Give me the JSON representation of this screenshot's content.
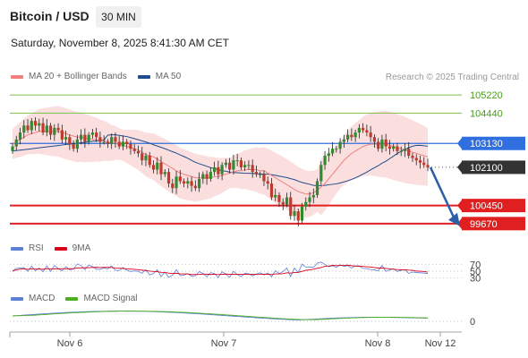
{
  "header": {
    "title": "Bitcoin / USD",
    "timeframe": "30 MIN",
    "timestamp": "Saturday, November 8, 2025 8:41:30 AM CET"
  },
  "legend_price": [
    {
      "label": "MA 20 + Bollinger Bands",
      "color": "#f08080"
    },
    {
      "label": "MA 50",
      "color": "#1f4e8c"
    }
  ],
  "credit": "Research © 2025 Trading Central",
  "legend_rsi": [
    {
      "label": "RSI",
      "color": "#5b7fd6"
    },
    {
      "label": "9MA",
      "color": "#d9001b"
    }
  ],
  "legend_macd": [
    {
      "label": "MACD",
      "color": "#5b7fd6"
    },
    {
      "label": "MACD Signal",
      "color": "#4caf1f"
    }
  ],
  "colors": {
    "up": "#2e8b2e",
    "down": "#c0392b",
    "support": "#e02020",
    "resistance_green": "#7fbf4f",
    "pivot": "#2f6fe0",
    "last": "#333333",
    "band_fill": "#fbdada",
    "ma20": "#f08080",
    "ma50": "#1f4e8c",
    "arrow": "#2a5fa8"
  },
  "chart_data": [
    {
      "type": "candlestick",
      "title": "Bitcoin / USD",
      "timeframe": "30 MIN",
      "x_tick_labels": [
        "Nov 6",
        "Nov 7",
        "Nov 8",
        "Nov 12"
      ],
      "ylim": [
        99200,
        105650
      ],
      "levels": [
        {
          "value": 105220,
          "label": "105220",
          "kind": "resistance"
        },
        {
          "value": 104440,
          "label": "104440",
          "kind": "resistance"
        },
        {
          "value": 103130,
          "label": "103130",
          "kind": "pivot"
        },
        {
          "value": 102100,
          "label": "102100",
          "kind": "last"
        },
        {
          "value": 100450,
          "label": "100450",
          "kind": "support"
        },
        {
          "value": 99670,
          "label": "99670",
          "kind": "support"
        }
      ],
      "close": [
        103000,
        103300,
        103600,
        103900,
        103700,
        104100,
        103900,
        104000,
        103600,
        103900,
        103500,
        103800,
        103700,
        103300,
        103400,
        103100,
        102900,
        103300,
        103500,
        103200,
        103500,
        103600,
        103400,
        103200,
        103200,
        103100,
        103400,
        103200,
        103000,
        103200,
        103100,
        102900,
        102800,
        102700,
        102400,
        102600,
        102200,
        102000,
        102300,
        101800,
        101900,
        101400,
        101200,
        101700,
        101500,
        101400,
        101500,
        101300,
        101200,
        101600,
        101800,
        101600,
        101900,
        102100,
        101800,
        102200,
        102300,
        102000,
        102400,
        102400,
        102100,
        102200,
        102200,
        101900,
        101800,
        101800,
        101500,
        101400,
        100800,
        100900,
        100600,
        100500,
        100800,
        100000,
        100200,
        99800,
        100400,
        100600,
        100800,
        100900,
        101500,
        102200,
        102600,
        102700,
        102900,
        102900,
        103200,
        103300,
        103500,
        103400,
        103600,
        103800,
        103700,
        103600,
        103400,
        103200,
        102900,
        103300,
        103000,
        102900,
        103000,
        102800,
        102800,
        102900,
        102600,
        102500,
        102400,
        102300,
        102200,
        102100
      ],
      "ma20": [
        103100,
        103200,
        103300,
        103400,
        103500,
        103550,
        103600,
        103650,
        103650,
        103650,
        103650,
        103650,
        103650,
        103600,
        103550,
        103500,
        103450,
        103400,
        103400,
        103350,
        103350,
        103300,
        103300,
        103250,
        103250,
        103200,
        103150,
        103150,
        103100,
        103050,
        103000,
        102950,
        102900,
        102850,
        102750,
        102650,
        102600,
        102550,
        102450,
        102350,
        102250,
        102150,
        102050,
        101950,
        101850,
        101800,
        101750,
        101700,
        101650,
        101650,
        101650,
        101650,
        101650,
        101700,
        101700,
        101750,
        101800,
        101850,
        101900,
        101950,
        101950,
        102000,
        102000,
        102000,
        102000,
        101950,
        101950,
        101850,
        101750,
        101650,
        101550,
        101450,
        101350,
        101250,
        101150,
        101050,
        101000,
        100950,
        100950,
        101000,
        101100,
        101250,
        101400,
        101600,
        101800,
        102000,
        102200,
        102400,
        102550,
        102700,
        102800,
        102900,
        103000,
        103050,
        103100,
        103100,
        103100,
        103100,
        103100,
        103050,
        103000,
        102950,
        102900,
        102850,
        102800,
        102750,
        102700,
        102650,
        102600,
        102550
      ]
    },
    {
      "type": "line",
      "name": "RSI",
      "levels": [
        70,
        50,
        30
      ],
      "series": [
        "RSI",
        "9MA"
      ]
    },
    {
      "type": "line",
      "name": "MACD",
      "levels": [
        0
      ],
      "series": [
        "MACD",
        "MACD Signal"
      ]
    }
  ]
}
